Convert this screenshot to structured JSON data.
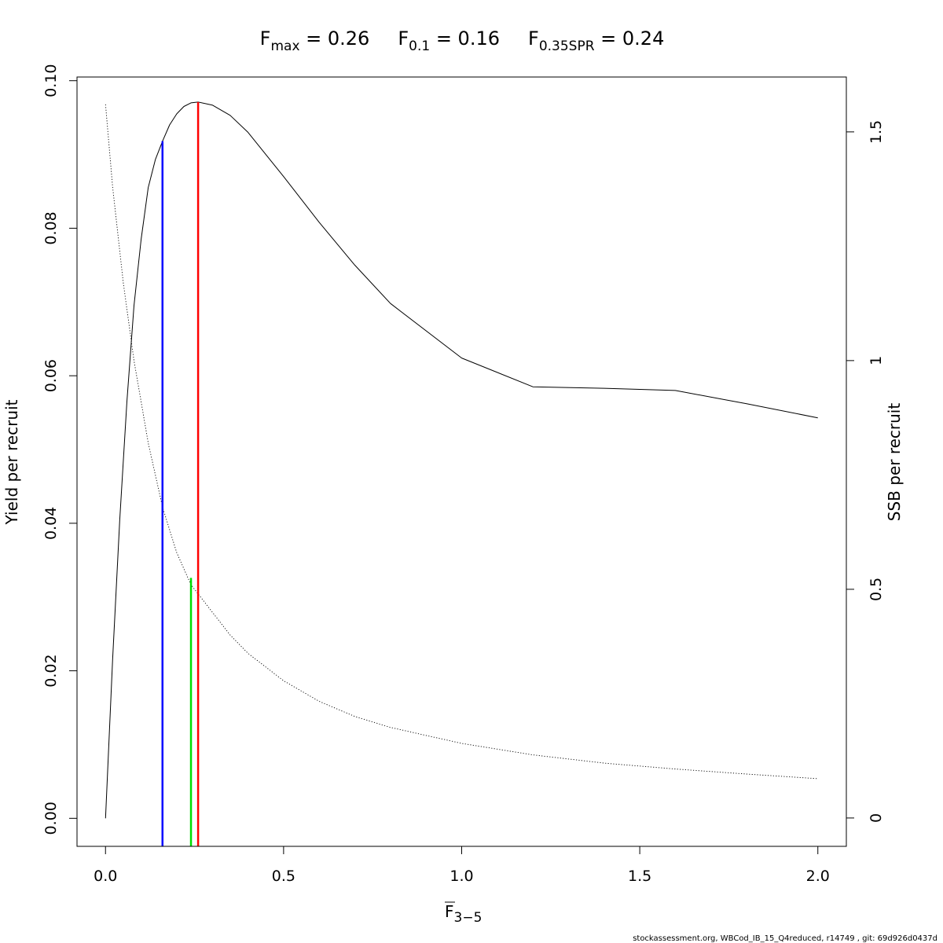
{
  "chart_data": {
    "type": "line",
    "title_parts": [
      {
        "main": "F",
        "sub": "max",
        "value": " = 0.26"
      },
      {
        "main": "F",
        "sub": "0.1",
        "value": " = 0.16"
      },
      {
        "main": "F",
        "sub": "0.35SPR",
        "value": " = 0.24"
      }
    ],
    "xlabel": {
      "main": "F",
      "sub": "3−5"
    },
    "ylabel_left": "Yield per recruit",
    "ylabel_right": "SSB per recruit",
    "xlim": [
      -0.08,
      2.08
    ],
    "ylim_left": [
      -0.0038,
      0.1005
    ],
    "ylim_right": [
      -0.062,
      1.62
    ],
    "x_ticks": [
      0,
      0.5,
      1,
      1.5,
      2
    ],
    "x_tick_labels": [
      "0.0",
      "0.5",
      "1.0",
      "1.5",
      "2.0"
    ],
    "y_left_ticks": [
      0,
      0.02,
      0.04,
      0.06,
      0.08,
      0.1
    ],
    "y_left_tick_labels": [
      "0.00",
      "0.02",
      "0.04",
      "0.06",
      "0.08",
      "0.10"
    ],
    "y_right_ticks": [
      0,
      0.5,
      1,
      1.5
    ],
    "y_right_tick_labels": [
      "0",
      "0.5",
      "1",
      "1.5"
    ],
    "series": [
      {
        "axis": "left",
        "style": "solid",
        "x": [
          0,
          0.02,
          0.04,
          0.06,
          0.08,
          0.1,
          0.12,
          0.14,
          0.16,
          0.18,
          0.2,
          0.22,
          0.24,
          0.26,
          0.3,
          0.35,
          0.4,
          0.5,
          0.6,
          0.7,
          0.8,
          1.0,
          1.2,
          1.4,
          1.6,
          1.8,
          2.0
        ],
        "y": [
          0,
          0.0215,
          0.0405,
          0.0565,
          0.0695,
          0.0785,
          0.0855,
          0.0893,
          0.0918,
          0.094,
          0.0955,
          0.0965,
          0.097,
          0.0971,
          0.0967,
          0.0953,
          0.093,
          0.087,
          0.0808,
          0.075,
          0.0698,
          0.0624,
          0.0585,
          0.0583,
          0.058,
          0.0562,
          0.0543
        ]
      },
      {
        "axis": "right",
        "style": "dotted",
        "x": [
          0,
          0.02,
          0.05,
          0.08,
          0.1,
          0.12,
          0.16,
          0.2,
          0.24,
          0.26,
          0.3,
          0.35,
          0.4,
          0.5,
          0.6,
          0.7,
          0.8,
          1.0,
          1.2,
          1.4,
          1.6,
          1.8,
          2.0
        ],
        "y": [
          1.56,
          1.38,
          1.17,
          1.0,
          0.91,
          0.82,
          0.68,
          0.58,
          0.51,
          0.49,
          0.45,
          0.4,
          0.36,
          0.3,
          0.255,
          0.222,
          0.198,
          0.163,
          0.138,
          0.12,
          0.107,
          0.096,
          0.086
        ]
      }
    ],
    "reference_lines": [
      {
        "x": 0.16,
        "y_left": 0.0918,
        "color": "#0000ff"
      },
      {
        "x": 0.24,
        "y_left": 0.0326,
        "color": "#00dd00"
      },
      {
        "x": 0.26,
        "y_left": 0.0971,
        "color": "#ff0000"
      }
    ],
    "grid": false,
    "legend": "none"
  },
  "footer_text": "stockassessment.org, WBCod_IB_15_Q4reduced, r14749 , git: 69d926d0437d"
}
